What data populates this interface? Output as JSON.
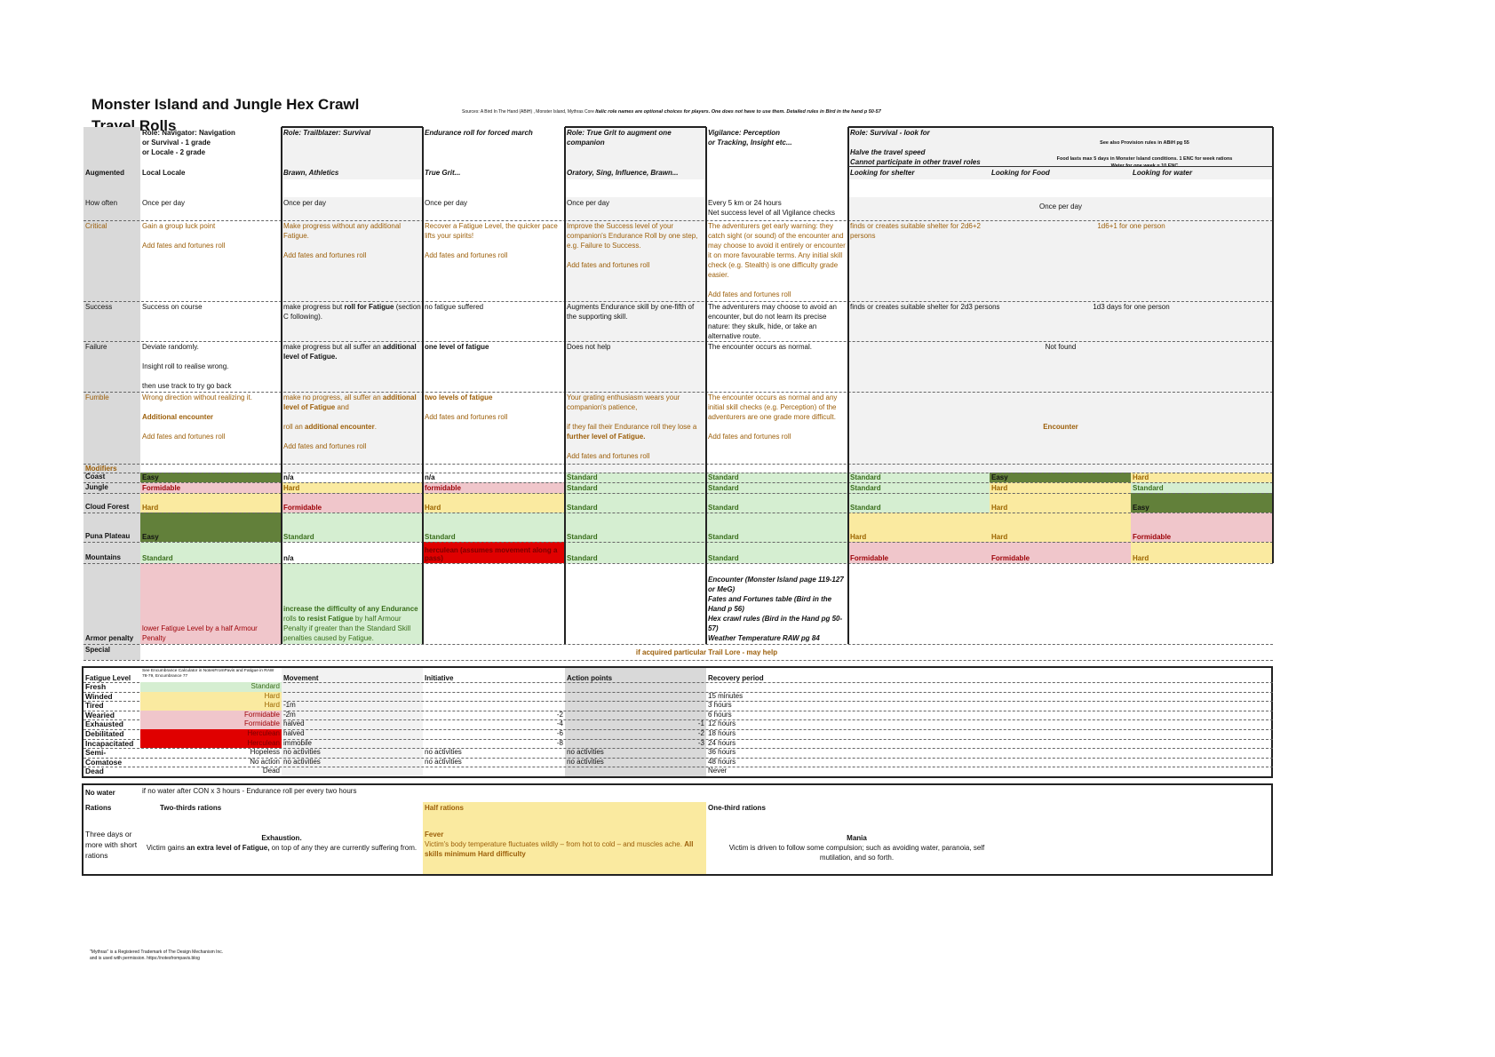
{
  "title": "Monster Island and Jungle Hex Crawl",
  "subtitle": "Travel Rolls",
  "sources": "Sources: A Bird In The Hand (ABiH) , Monster Island, Mythras Core",
  "sources_note": "Italic role names are optional choices for players. One does not have to use them. Detailed rules in Bird in the hand p 50-57",
  "row_labels": {
    "augmented": "Augmented",
    "how_often": "How often",
    "critical": "Critical",
    "success": "Success",
    "failure": "Failure",
    "fumble": "Fumble",
    "modifiers": "Modifiers",
    "armor": "Armor penalty",
    "special": "Special"
  },
  "columns": [
    {
      "header": [
        "Role: Navigator: Navigation",
        "or Survival - 1 grade",
        "or Locale - 2 grade"
      ],
      "augmented": "Local Locale"
    },
    {
      "header": [
        "Role: Trailblazer: Survival"
      ],
      "augmented": "Brawn, Athletics"
    },
    {
      "header": [
        "Endurance roll for forced march"
      ],
      "augmented": "True Grit..."
    },
    {
      "header": [
        "Role: True Grit to augment one companion"
      ],
      "augmented": "Oratory, Sing, Influence, Brawn..."
    },
    {
      "header": [
        "Vigilance: Perception",
        "or Tracking, Insight etc..."
      ],
      "augmented": ""
    }
  ],
  "survival": {
    "header": "Role: Survival - look for",
    "halve": "Halve the travel speed",
    "cannot": "Cannot participate in other travel roles",
    "note1": "See also Provision rules in ABiH pg 55",
    "note2": "Food lasts max 5 days in Monster Island conditions. 1 ENC for week rations",
    "note3": "Water for one week = 10 ENC",
    "subcols": [
      "Looking for shelter",
      "Looking for Food",
      "Looking for water"
    ]
  },
  "how_often": [
    "Once per day",
    "Once per day",
    "Once per day",
    "Once per day",
    [
      "Every 5 km or 24 hours",
      "Net success level of all Vigilance checks"
    ],
    "Once per day"
  ],
  "critical": [
    [
      "Gain a group luck point",
      "Add fates and fortunes roll"
    ],
    [
      "Make progress without any additional Fatigue.",
      "Add fates and fortunes roll"
    ],
    [
      "Recover a Fatigue Level, the quicker pace lifts your spirits!",
      "Add fates and fortunes roll"
    ],
    [
      "Improve the Success level of your companion's Endurance Roll by one step, e.g. Failure to Success.",
      "Add fates and fortunes roll"
    ],
    [
      "The adventurers get early warning: they catch sight (or sound) of the encounter and may choose to avoid it entirely or encounter it on more favourable terms. Any initial skill check (e.g. Stealth) is one difficulty grade easier.",
      "Add fates and fortunes roll"
    ],
    "finds or creates suitable shelter for 2d6+2 persons",
    "1d6+1 for one person"
  ],
  "success": [
    "Success on course",
    [
      [
        {
          "t": "make progress but "
        },
        {
          "t": "roll for Fatigue",
          "b": true
        },
        {
          "t": " (section C following)."
        }
      ]
    ],
    "no fatigue suffered",
    "Augments Endurance skill by one-fifth of the supporting skill.",
    "The adventurers may choose to avoid an encounter, but do not learn its precise nature: they skulk, hide, or take an alternative route.",
    "finds or creates suitable shelter for 2d3 persons",
    "1d3 days for one person"
  ],
  "failure": [
    [
      "Deviate randomly.",
      "Insight roll to realise wrong.",
      "then use track to try go back"
    ],
    [
      [
        {
          "t": "make progress but all suffer an "
        },
        {
          "t": "additional level of Fatigue.",
          "b": true
        }
      ]
    ],
    [
      [
        {
          "t": "one level of fatigue",
          "b": true
        }
      ]
    ],
    "Does not help",
    "The encounter occurs as normal.",
    "Not found"
  ],
  "fumble": [
    [
      "Wrong direction without realizing it.",
      [
        {
          "t": "Additional encounter",
          "b": true
        }
      ],
      "Add fates and fortunes roll"
    ],
    [
      [
        {
          "t": "make no progress, all suffer an "
        },
        {
          "t": "additional level of Fatigue",
          "b": true
        },
        {
          "t": " and"
        }
      ],
      [
        {
          "t": "roll an "
        },
        {
          "t": "additional encounter",
          "b": true
        },
        {
          "t": "."
        }
      ],
      "Add fates and fortunes roll"
    ],
    [
      [
        {
          "t": "two levels of fatigue",
          "b": true
        }
      ],
      "Add fates and fortunes roll"
    ],
    [
      "Your grating enthusiasm wears your companion's patience,",
      [
        {
          "t": "if they fail their Endurance roll they lose a "
        },
        {
          "t": "further level of Fatigue.",
          "b": true
        }
      ],
      "Add fates and fortunes roll"
    ],
    [
      "The encounter occurs as normal and any initial skill checks (e.g. Perception) of the adventurers are one grade more difficult.",
      "Add fates and fortunes roll"
    ],
    "Encounter"
  ],
  "terrains": [
    {
      "name": "Coast",
      "values": [
        "Easy",
        "n/a",
        "n/a",
        "Standard",
        "Standard",
        "Standard",
        "Easy",
        "Hard"
      ]
    },
    {
      "name": "Jungle",
      "values": [
        "Formidable",
        "Hard",
        "formidable",
        "Standard",
        "Standard",
        "Standard",
        "Hard",
        "Standard"
      ]
    },
    {
      "name": "Cloud Forest",
      "values": [
        "Hard",
        "Formidable",
        "Hard",
        "Standard",
        "Standard",
        "Standard",
        "Hard",
        "Easy"
      ]
    },
    {
      "name": "Puna Plateau",
      "values": [
        "Easy",
        "Standard",
        "Standard",
        "Standard",
        "Standard",
        "Hard",
        "Hard",
        "Formidable"
      ]
    },
    {
      "name": "Mountains",
      "values": [
        "Standard",
        "n/a",
        "herculean (assumes movement along a pass)",
        "Standard",
        "Standard",
        "Formidable",
        "Formidable",
        "Hard"
      ]
    }
  ],
  "armor": {
    "c1": "lower Fatigue Level by a half Armour Penalty",
    "c2": [
      [
        {
          "t": "increase the difficulty of any Endurance",
          "b": true
        },
        {
          "t": " rolls "
        },
        {
          "t": "to resist Fatigue",
          "b": true
        },
        {
          "t": " by half Armour Penalty if greater than the Standard Skill penalties caused by Fatigue."
        }
      ]
    ],
    "references": [
      "Encounter  (Monster Island page 119-127 or MeG)",
      "Fates and Fortunes table  (Bird in the Hand p 56)",
      "Hex crawl rules (Bird in the Hand pg 50-57)",
      "Weather Temperature RAW pg 84"
    ]
  },
  "special": "if acquired particular Trail Lore - may help",
  "grade_colors": {
    "easy": {
      "bg": "#62803a",
      "fg": "#111111"
    },
    "standard": {
      "bg": "#d5eed1",
      "fg": "#3a6e1c"
    },
    "hard": {
      "bg": "#faeaa0",
      "fg": "#9c6500"
    },
    "formidable": {
      "bg": "#f0c6cb",
      "fg": "#9c0006"
    },
    "herculean": {
      "bg": "#e00000",
      "fg": "#7a0000"
    }
  },
  "fatigue": {
    "note": "See Encumbrance Calculator in NotesFromPavis and Fatigue in RAW 78-79, Encumbrance 77",
    "headers": [
      "Fatigue Level",
      "Movement",
      "Initiative",
      "Action points",
      "Recovery period"
    ],
    "rows": [
      {
        "level": "Fresh",
        "grade": "Standard",
        "movement": "",
        "initiative": "",
        "action": "",
        "recovery": ""
      },
      {
        "level": "Winded",
        "grade": "Hard",
        "movement": "",
        "initiative": "",
        "action": "",
        "recovery": "15 minutes"
      },
      {
        "level": "Tired",
        "grade": "Hard",
        "movement": "-1m",
        "initiative": "",
        "action": "",
        "recovery": "3 hours"
      },
      {
        "level": "Wearied",
        "grade": "Formidable",
        "movement": "-2m",
        "initiative": "-2",
        "action": "",
        "recovery": "6 hours"
      },
      {
        "level": "Exhausted",
        "grade": "Formidable",
        "movement": "halved",
        "initiative": "-4",
        "action": "-1",
        "recovery": "12 hours"
      },
      {
        "level": "Debilitated",
        "grade": "Herculean",
        "movement": "halved",
        "initiative": "-6",
        "action": "-2",
        "recovery": "18 hours"
      },
      {
        "level": "Incapacitated",
        "grade": "Herculean",
        "movement": "immobile",
        "initiative": "-8",
        "action": "-3",
        "recovery": "24 hours"
      },
      {
        "level": "Semi-Conscious",
        "grade": "Hopeless",
        "movement": "no activities",
        "initiative": "no activities",
        "action": "no activities",
        "recovery": "36 hours"
      },
      {
        "level": "Comatose",
        "grade": "No action",
        "movement": "no activities",
        "initiative": "no activities",
        "action": "no activities",
        "recovery": "48 hours"
      },
      {
        "level": "Dead",
        "grade": "Dead",
        "movement": "",
        "initiative": "",
        "action": "",
        "recovery": "Never"
      }
    ]
  },
  "rations": {
    "no_water_label": "No water",
    "no_water_text": "if no water after CON x 3 hours - Endurance roll per every two hours",
    "rations_label": "Rations",
    "short_label": "Three days or more with short rations",
    "two_thirds": {
      "title": "Two-thirds rations",
      "effect": "Exhaustion.",
      "text": [
        {
          "t": "Victim gains "
        },
        {
          "t": "an extra level of Fatigue,",
          "b": true
        },
        {
          "t": " on top of any they are currently suffering from."
        }
      ]
    },
    "half": {
      "title": "Half rations",
      "effect": "Fever",
      "text": [
        {
          "t": "Victim's body temperature fluctuates wildly – from hot to cold – and muscles ache. "
        },
        {
          "t": "All skills minimum Hard difficulty",
          "b": true
        }
      ]
    },
    "one_third": {
      "title": "One-third rations",
      "effect": "Mania",
      "text": "Victim is driven to follow some compulsion; such as avoiding water, paranoia, self mutilation, and so forth."
    }
  },
  "footer": [
    "\"Mythras\" is a Registered Trademark of The Design Mechanism Inc.",
    "and is used with permission. https://notesfrompavis.blog"
  ]
}
